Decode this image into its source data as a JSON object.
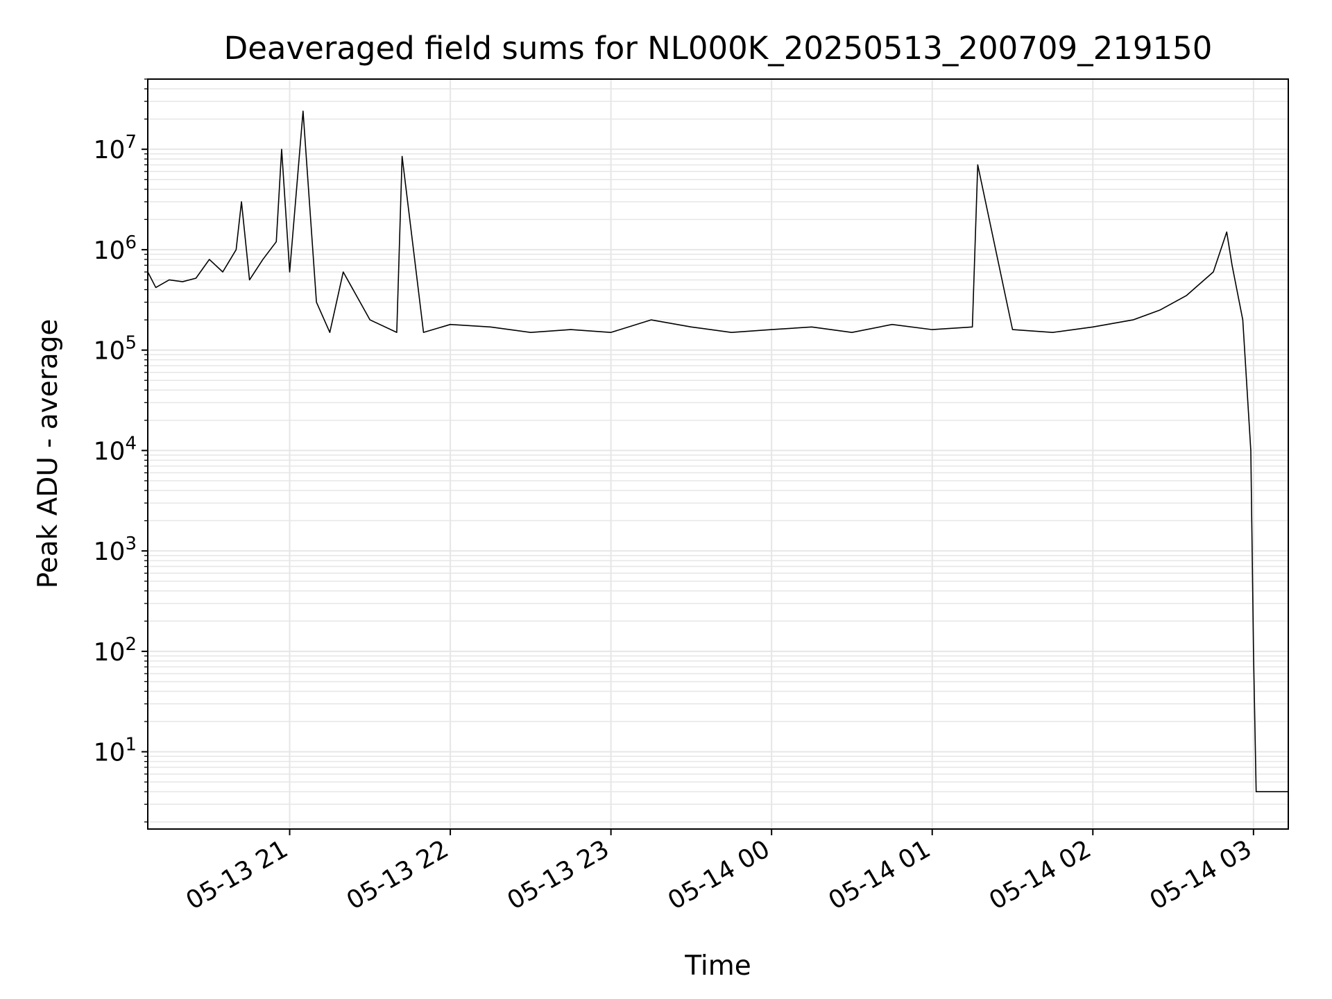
{
  "chart_data": {
    "type": "line",
    "title": "Deaveraged field sums for NL000K_20250513_200709_219150",
    "xlabel": "Time",
    "ylabel": "Peak ADU - average",
    "yscale": "log",
    "ylim": [
      1.7,
      50000000
    ],
    "xlim": [
      "2025-05-13 20:07:00",
      "2025-05-14 03:13:00"
    ],
    "grid": true,
    "line_color": "#000000",
    "grid_color": "#e6e6e6",
    "x_ticks": [
      {
        "t": "2025-05-13 21:00",
        "label": "05-13 21"
      },
      {
        "t": "2025-05-13 22:00",
        "label": "05-13 22"
      },
      {
        "t": "2025-05-13 23:00",
        "label": "05-13 23"
      },
      {
        "t": "2025-05-14 00:00",
        "label": "05-14 00"
      },
      {
        "t": "2025-05-14 01:00",
        "label": "05-14 01"
      },
      {
        "t": "2025-05-14 02:00",
        "label": "05-14 02"
      },
      {
        "t": "2025-05-14 03:00",
        "label": "05-14 03"
      }
    ],
    "y_ticks": [
      {
        "value": 10,
        "base": "10",
        "exp": "1"
      },
      {
        "value": 100,
        "base": "10",
        "exp": "2"
      },
      {
        "value": 1000,
        "base": "10",
        "exp": "3"
      },
      {
        "value": 10000,
        "base": "10",
        "exp": "4"
      },
      {
        "value": 100000,
        "base": "10",
        "exp": "5"
      },
      {
        "value": 1000000,
        "base": "10",
        "exp": "6"
      },
      {
        "value": 10000000,
        "base": "10",
        "exp": "7"
      }
    ],
    "series": [
      {
        "points": [
          [
            "2025-05-13 20:07",
            600000
          ],
          [
            "2025-05-13 20:10",
            420000
          ],
          [
            "2025-05-13 20:15",
            500000
          ],
          [
            "2025-05-13 20:20",
            480000
          ],
          [
            "2025-05-13 20:25",
            520000
          ],
          [
            "2025-05-13 20:30",
            800000
          ],
          [
            "2025-05-13 20:35",
            600000
          ],
          [
            "2025-05-13 20:40",
            1000000
          ],
          [
            "2025-05-13 20:42",
            3000000
          ],
          [
            "2025-05-13 20:45",
            500000
          ],
          [
            "2025-05-13 20:50",
            800000
          ],
          [
            "2025-05-13 20:55",
            1200000
          ],
          [
            "2025-05-13 20:57",
            10000000
          ],
          [
            "2025-05-13 21:00",
            600000
          ],
          [
            "2025-05-13 21:05",
            24000000
          ],
          [
            "2025-05-13 21:10",
            300000
          ],
          [
            "2025-05-13 21:15",
            150000
          ],
          [
            "2025-05-13 21:20",
            600000
          ],
          [
            "2025-05-13 21:30",
            200000
          ],
          [
            "2025-05-13 21:40",
            150000
          ],
          [
            "2025-05-13 21:42",
            8500000
          ],
          [
            "2025-05-13 21:50",
            150000
          ],
          [
            "2025-05-13 22:00",
            180000
          ],
          [
            "2025-05-13 22:15",
            170000
          ],
          [
            "2025-05-13 22:30",
            150000
          ],
          [
            "2025-05-13 22:45",
            160000
          ],
          [
            "2025-05-13 23:00",
            150000
          ],
          [
            "2025-05-13 23:15",
            200000
          ],
          [
            "2025-05-13 23:30",
            170000
          ],
          [
            "2025-05-13 23:45",
            150000
          ],
          [
            "2025-05-14 00:00",
            160000
          ],
          [
            "2025-05-14 00:15",
            170000
          ],
          [
            "2025-05-14 00:30",
            150000
          ],
          [
            "2025-05-14 00:45",
            180000
          ],
          [
            "2025-05-14 01:00",
            160000
          ],
          [
            "2025-05-14 01:15",
            170000
          ],
          [
            "2025-05-14 01:17",
            7000000
          ],
          [
            "2025-05-14 01:30",
            160000
          ],
          [
            "2025-05-14 01:45",
            150000
          ],
          [
            "2025-05-14 02:00",
            170000
          ],
          [
            "2025-05-14 02:15",
            200000
          ],
          [
            "2025-05-14 02:25",
            250000
          ],
          [
            "2025-05-14 02:35",
            350000
          ],
          [
            "2025-05-14 02:45",
            600000
          ],
          [
            "2025-05-14 02:50",
            1500000
          ],
          [
            "2025-05-14 02:52",
            700000
          ],
          [
            "2025-05-14 02:56",
            200000
          ],
          [
            "2025-05-14 02:59",
            10000
          ],
          [
            "2025-05-14 03:00",
            100
          ],
          [
            "2025-05-14 03:01",
            4
          ],
          [
            "2025-05-14 03:13",
            4
          ]
        ]
      }
    ]
  }
}
